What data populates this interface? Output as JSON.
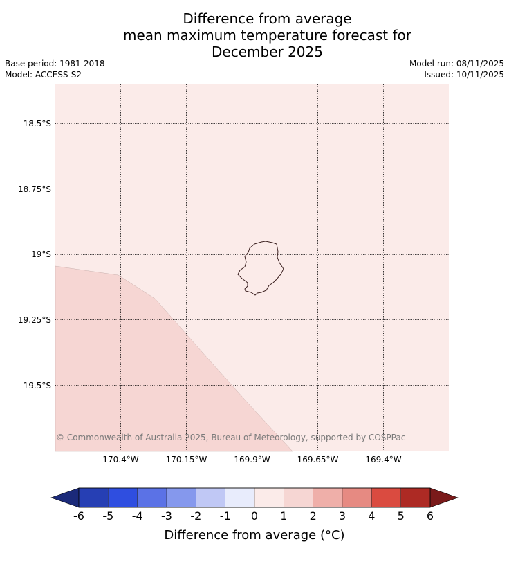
{
  "title": {
    "line1": "Difference from average",
    "line2": "mean maximum temperature forecast for",
    "line3": "December 2025"
  },
  "meta": {
    "base_period": "Base period: 1981-2018",
    "model": "Model: ACCESS-S2",
    "model_run": "Model run: 08/11/2025",
    "issued": "Issued: 10/11/2025"
  },
  "map": {
    "lat_labels": [
      "18.5°S",
      "18.75°S",
      "19°S",
      "19.25°S",
      "19.5°S"
    ],
    "lon_labels": [
      "170.4°W",
      "170.15°W",
      "169.9°W",
      "169.65°W",
      "169.4°W"
    ],
    "regions": [
      {
        "name": "0 to 1",
        "color": "#fbebe9"
      },
      {
        "name": "1 to 2",
        "color": "#f6d6d3"
      }
    ],
    "copyright": "© Commonwealth of Australia 2025, Bureau of Meteorology, supported by COSPPac"
  },
  "colorbar": {
    "title": "Difference from average ($^\\circ$C)",
    "title_display": "Difference from average (°C)",
    "tick_labels": [
      "-6",
      "-5",
      "-4",
      "-3",
      "-2",
      "-1",
      "0",
      "1",
      "2",
      "3",
      "4",
      "5",
      "6"
    ],
    "under_color": "#1b2a7a",
    "over_color": "#7a1a1a",
    "colors": [
      "#263fb4",
      "#2f4ee0",
      "#5b72e6",
      "#8598ed",
      "#c0c8f5",
      "#e8ecfc",
      "#fbebe9",
      "#f6d6d3",
      "#efafa9",
      "#e68a82",
      "#da4b40",
      "#ad2a24"
    ]
  }
}
